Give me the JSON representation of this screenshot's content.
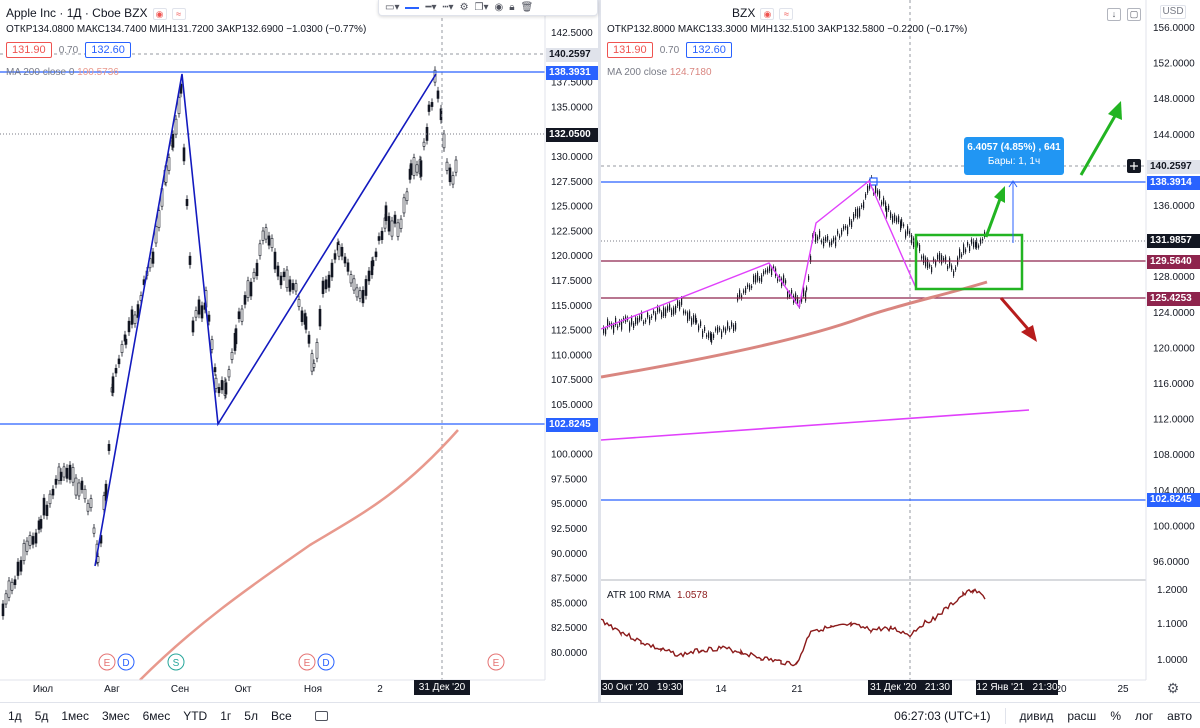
{
  "left_chart": {
    "legend_line1": "Apple Inc · 1Д · Cboe BZX",
    "ohlc": "ОТКР134.0800 МАКС134.7400 МИН131.7200 ЗАКР132.6900 −1.0300 (−0.77%)",
    "bid": "131.90",
    "spread": "0.70",
    "ask": "132.60",
    "ma_label": "MA 200 close 0",
    "ma_value": "100.5736",
    "price_axis": [
      "142.5000",
      "137.5000",
      "135.0000",
      "130.0000",
      "127.5000",
      "125.0000",
      "122.5000",
      "120.0000",
      "117.5000",
      "115.0000",
      "112.5000",
      "110.0000",
      "107.5000",
      "105.0000",
      "100.0000",
      "97.5000",
      "95.0000",
      "92.5000",
      "90.0000",
      "87.5000",
      "85.0000",
      "82.5000",
      "80.0000"
    ],
    "price_tags": {
      "upper": "140.2597",
      "level_high": "138.3931",
      "last": "132.0500",
      "level_low": "102.8245"
    },
    "time_axis": [
      "Июл",
      "Авг",
      "Сен",
      "Окт",
      "Ноя",
      "2"
    ],
    "time_badge": "31 Дек '20",
    "event_markers": [
      "E",
      "D",
      "S",
      "E",
      "D",
      "E"
    ]
  },
  "right_chart": {
    "legend_line1": "BZX",
    "ohlc": "ОТКР132.8000 МАКС133.3000 МИН132.5100 ЗАКР132.5800 −0.2200 (−0.17%)",
    "bid": "131.90",
    "spread": "0.70",
    "ask": "132.60",
    "ma_label": "MA 200 close",
    "ma_value": "124.7180",
    "currency": "USD",
    "price_axis": [
      "156.0000",
      "152.0000",
      "148.0000",
      "144.0000",
      "136.0000",
      "132.0000",
      "128.0000",
      "124.0000",
      "120.0000",
      "116.0000",
      "112.0000",
      "108.0000",
      "104.0000",
      "100.0000",
      "96.0000"
    ],
    "price_tags": {
      "upper": "140.2597",
      "level_high": "138.3914",
      "current": "131.9857",
      "level_mid": "129.5640",
      "level_low1": "125.4253",
      "level_low2": "102.8245"
    },
    "measure_tooltip": {
      "line1": "6.4057 (4.85%) , 641",
      "line2": "Бары: 1, 1ч"
    },
    "atr_label": "ATR 100 RMA",
    "atr_value": "1.0578",
    "atr_axis": [
      "1.2000",
      "1.1000",
      "1.0000"
    ],
    "time_axis": [
      "14",
      "21",
      "20",
      "25"
    ],
    "time_badges": [
      "30 Окт '20   19:30",
      "31 Дек '20   21:30",
      "12 Янв '21   21:30"
    ]
  },
  "toolbar": {
    "timeframes": [
      "1д",
      "5д",
      "1мес",
      "3мес",
      "6мес",
      "YTD",
      "1г",
      "5л",
      "Все"
    ],
    "clock": "06:27:03 (UTC+1)",
    "options": [
      "дивид",
      "расш",
      "%",
      "лог",
      "авто"
    ]
  },
  "colors": {
    "accent": "#2962ff",
    "trendline": "#131abf",
    "magenta": "#e040fb",
    "ma": "#e8998d",
    "green": "#22b422",
    "red": "#b71c1c",
    "atr": "#8b1a1a"
  }
}
